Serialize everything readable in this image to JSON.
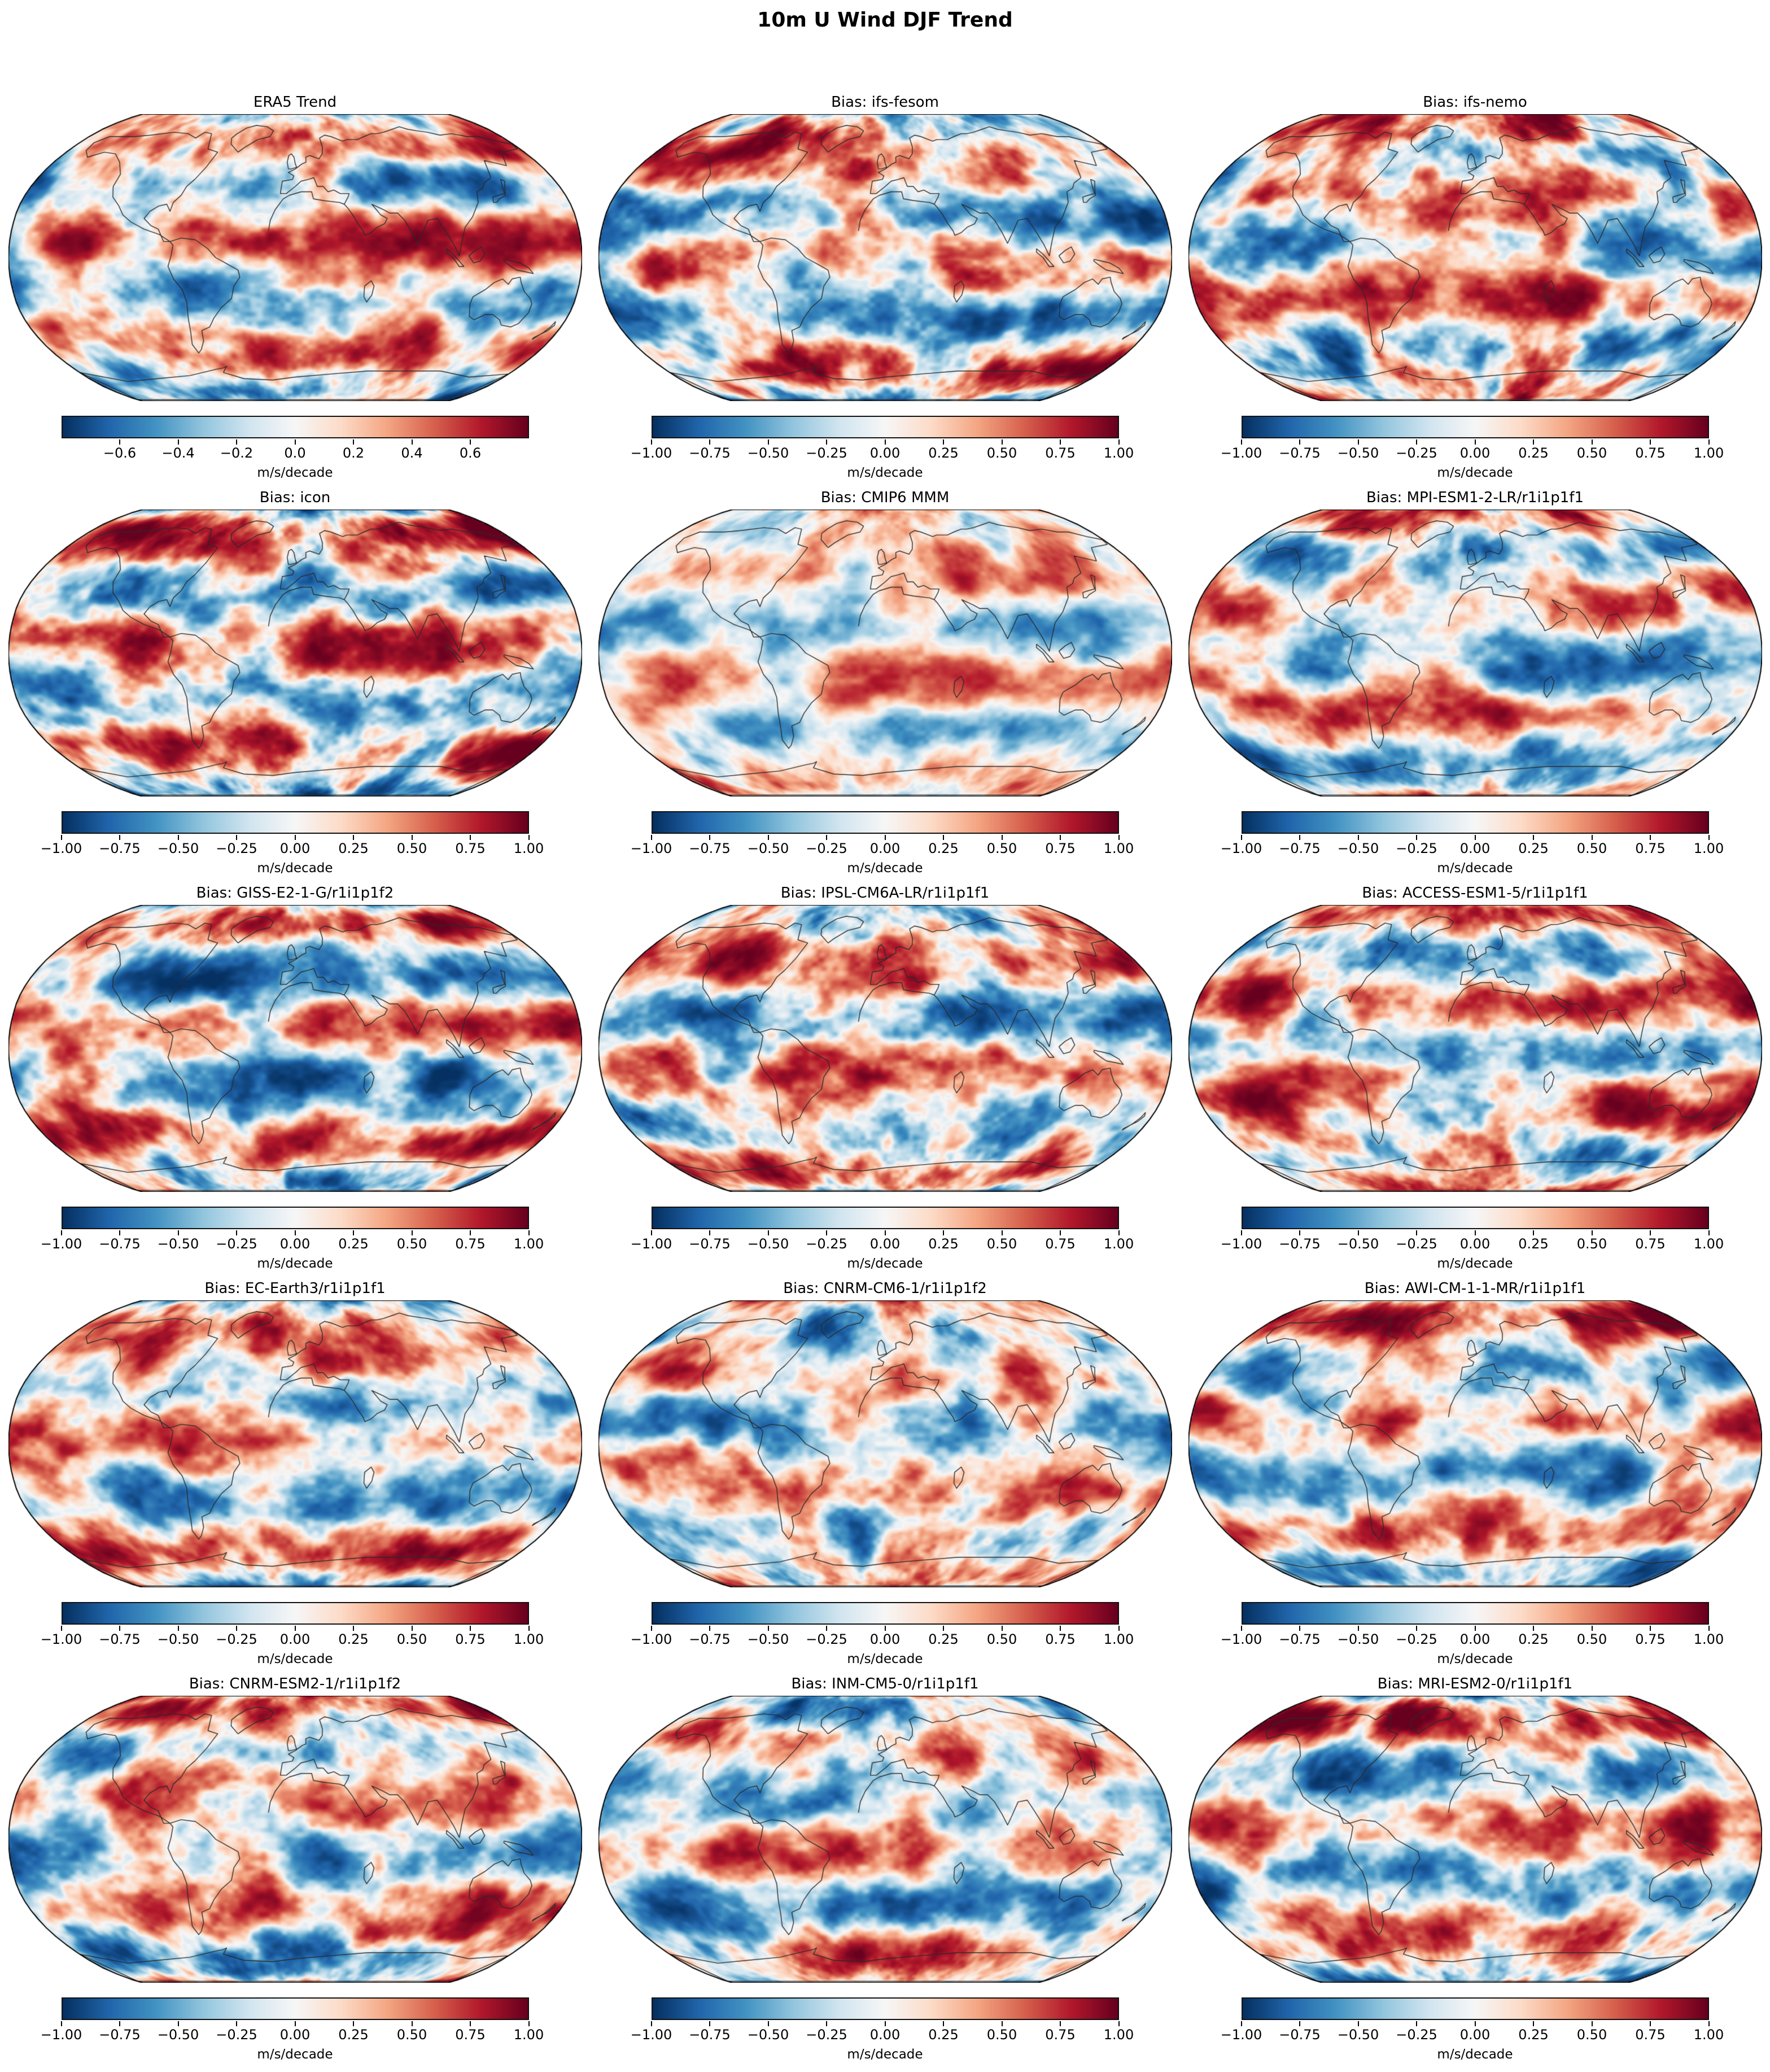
{
  "figure_title": "10m U Wind DJF Trend",
  "colors": {
    "background": "#ffffff",
    "colormap_negative_end": "#053061",
    "colormap_zero": "#f7f7f7",
    "colormap_positive_end": "#67001f",
    "coastline": "#2a2a2a",
    "map_border": "#000000"
  },
  "chart_data": {
    "type": "heatmap",
    "subtype": "global map small-multiples",
    "projection": "Robinson",
    "colormap": "RdBu_r",
    "grid": {
      "rows": 5,
      "cols": 3
    },
    "title": "10m U Wind DJF Trend",
    "unit": "m/s/decade",
    "panels": [
      {
        "title": "ERA5 Trend",
        "vmin": -0.8,
        "vmax": 0.8,
        "tick_values": [
          -0.6,
          -0.4,
          -0.2,
          0.0,
          0.2,
          0.4,
          0.6
        ],
        "tick_labels": [
          "−0.6",
          "−0.4",
          "−0.2",
          "0.0",
          "0.2",
          "0.4",
          "0.6"
        ],
        "unit": "m/s/decade"
      },
      {
        "title": "Bias: ifs-fesom",
        "vmin": -1.0,
        "vmax": 1.0,
        "tick_values": [
          -1.0,
          -0.75,
          -0.5,
          -0.25,
          0.0,
          0.25,
          0.5,
          0.75,
          1.0
        ],
        "tick_labels": [
          "−1.00",
          "−0.75",
          "−0.50",
          "−0.25",
          "0.00",
          "0.25",
          "0.50",
          "0.75",
          "1.00"
        ],
        "unit": "m/s/decade"
      },
      {
        "title": "Bias: ifs-nemo",
        "vmin": -1.0,
        "vmax": 1.0,
        "tick_values": [
          -1.0,
          -0.75,
          -0.5,
          -0.25,
          0.0,
          0.25,
          0.5,
          0.75,
          1.0
        ],
        "tick_labels": [
          "−1.00",
          "−0.75",
          "−0.50",
          "−0.25",
          "0.00",
          "0.25",
          "0.50",
          "0.75",
          "1.00"
        ],
        "unit": "m/s/decade"
      },
      {
        "title": "Bias: icon",
        "vmin": -1.0,
        "vmax": 1.0,
        "tick_values": [
          -1.0,
          -0.75,
          -0.5,
          -0.25,
          0.0,
          0.25,
          0.5,
          0.75,
          1.0
        ],
        "tick_labels": [
          "−1.00",
          "−0.75",
          "−0.50",
          "−0.25",
          "0.00",
          "0.25",
          "0.50",
          "0.75",
          "1.00"
        ],
        "unit": "m/s/decade"
      },
      {
        "title": "Bias: CMIP6 MMM",
        "vmin": -1.0,
        "vmax": 1.0,
        "tick_values": [
          -1.0,
          -0.75,
          -0.5,
          -0.25,
          0.0,
          0.25,
          0.5,
          0.75,
          1.0
        ],
        "tick_labels": [
          "−1.00",
          "−0.75",
          "−0.50",
          "−0.25",
          "0.00",
          "0.25",
          "0.50",
          "0.75",
          "1.00"
        ],
        "unit": "m/s/decade"
      },
      {
        "title": "Bias: MPI-ESM1-2-LR/r1i1p1f1",
        "vmin": -1.0,
        "vmax": 1.0,
        "tick_values": [
          -1.0,
          -0.75,
          -0.5,
          -0.25,
          0.0,
          0.25,
          0.5,
          0.75,
          1.0
        ],
        "tick_labels": [
          "−1.00",
          "−0.75",
          "−0.50",
          "−0.25",
          "0.00",
          "0.25",
          "0.50",
          "0.75",
          "1.00"
        ],
        "unit": "m/s/decade"
      },
      {
        "title": "Bias: GISS-E2-1-G/r1i1p1f2",
        "vmin": -1.0,
        "vmax": 1.0,
        "tick_values": [
          -1.0,
          -0.75,
          -0.5,
          -0.25,
          0.0,
          0.25,
          0.5,
          0.75,
          1.0
        ],
        "tick_labels": [
          "−1.00",
          "−0.75",
          "−0.50",
          "−0.25",
          "0.00",
          "0.25",
          "0.50",
          "0.75",
          "1.00"
        ],
        "unit": "m/s/decade"
      },
      {
        "title": "Bias: IPSL-CM6A-LR/r1i1p1f1",
        "vmin": -1.0,
        "vmax": 1.0,
        "tick_values": [
          -1.0,
          -0.75,
          -0.5,
          -0.25,
          0.0,
          0.25,
          0.5,
          0.75,
          1.0
        ],
        "tick_labels": [
          "−1.00",
          "−0.75",
          "−0.50",
          "−0.25",
          "0.00",
          "0.25",
          "0.50",
          "0.75",
          "1.00"
        ],
        "unit": "m/s/decade"
      },
      {
        "title": "Bias: ACCESS-ESM1-5/r1i1p1f1",
        "vmin": -1.0,
        "vmax": 1.0,
        "tick_values": [
          -1.0,
          -0.75,
          -0.5,
          -0.25,
          0.0,
          0.25,
          0.5,
          0.75,
          1.0
        ],
        "tick_labels": [
          "−1.00",
          "−0.75",
          "−0.50",
          "−0.25",
          "0.00",
          "0.25",
          "0.50",
          "0.75",
          "1.00"
        ],
        "unit": "m/s/decade"
      },
      {
        "title": "Bias: EC-Earth3/r1i1p1f1",
        "vmin": -1.0,
        "vmax": 1.0,
        "tick_values": [
          -1.0,
          -0.75,
          -0.5,
          -0.25,
          0.0,
          0.25,
          0.5,
          0.75,
          1.0
        ],
        "tick_labels": [
          "−1.00",
          "−0.75",
          "−0.50",
          "−0.25",
          "0.00",
          "0.25",
          "0.50",
          "0.75",
          "1.00"
        ],
        "unit": "m/s/decade"
      },
      {
        "title": "Bias: CNRM-CM6-1/r1i1p1f2",
        "vmin": -1.0,
        "vmax": 1.0,
        "tick_values": [
          -1.0,
          -0.75,
          -0.5,
          -0.25,
          0.0,
          0.25,
          0.5,
          0.75,
          1.0
        ],
        "tick_labels": [
          "−1.00",
          "−0.75",
          "−0.50",
          "−0.25",
          "0.00",
          "0.25",
          "0.50",
          "0.75",
          "1.00"
        ],
        "unit": "m/s/decade"
      },
      {
        "title": "Bias: AWI-CM-1-1-MR/r1i1p1f1",
        "vmin": -1.0,
        "vmax": 1.0,
        "tick_values": [
          -1.0,
          -0.75,
          -0.5,
          -0.25,
          0.0,
          0.25,
          0.5,
          0.75,
          1.0
        ],
        "tick_labels": [
          "−1.00",
          "−0.75",
          "−0.50",
          "−0.25",
          "0.00",
          "0.25",
          "0.50",
          "0.75",
          "1.00"
        ],
        "unit": "m/s/decade"
      },
      {
        "title": "Bias: CNRM-ESM2-1/r1i1p1f2",
        "vmin": -1.0,
        "vmax": 1.0,
        "tick_values": [
          -1.0,
          -0.75,
          -0.5,
          -0.25,
          0.0,
          0.25,
          0.5,
          0.75,
          1.0
        ],
        "tick_labels": [
          "−1.00",
          "−0.75",
          "−0.50",
          "−0.25",
          "0.00",
          "0.25",
          "0.50",
          "0.75",
          "1.00"
        ],
        "unit": "m/s/decade"
      },
      {
        "title": "Bias: INM-CM5-0/r1i1p1f1",
        "vmin": -1.0,
        "vmax": 1.0,
        "tick_values": [
          -1.0,
          -0.75,
          -0.5,
          -0.25,
          0.0,
          0.25,
          0.5,
          0.75,
          1.0
        ],
        "tick_labels": [
          "−1.00",
          "−0.75",
          "−0.50",
          "−0.25",
          "0.00",
          "0.25",
          "0.50",
          "0.75",
          "1.00"
        ],
        "unit": "m/s/decade"
      },
      {
        "title": "Bias: MRI-ESM2-0/r1i1p1f1",
        "vmin": -1.0,
        "vmax": 1.0,
        "tick_values": [
          -1.0,
          -0.75,
          -0.5,
          -0.25,
          0.0,
          0.25,
          0.5,
          0.75,
          1.0
        ],
        "tick_labels": [
          "−1.00",
          "−0.75",
          "−0.50",
          "−0.25",
          "0.00",
          "0.25",
          "0.50",
          "0.75",
          "1.00"
        ],
        "unit": "m/s/decade"
      }
    ]
  }
}
